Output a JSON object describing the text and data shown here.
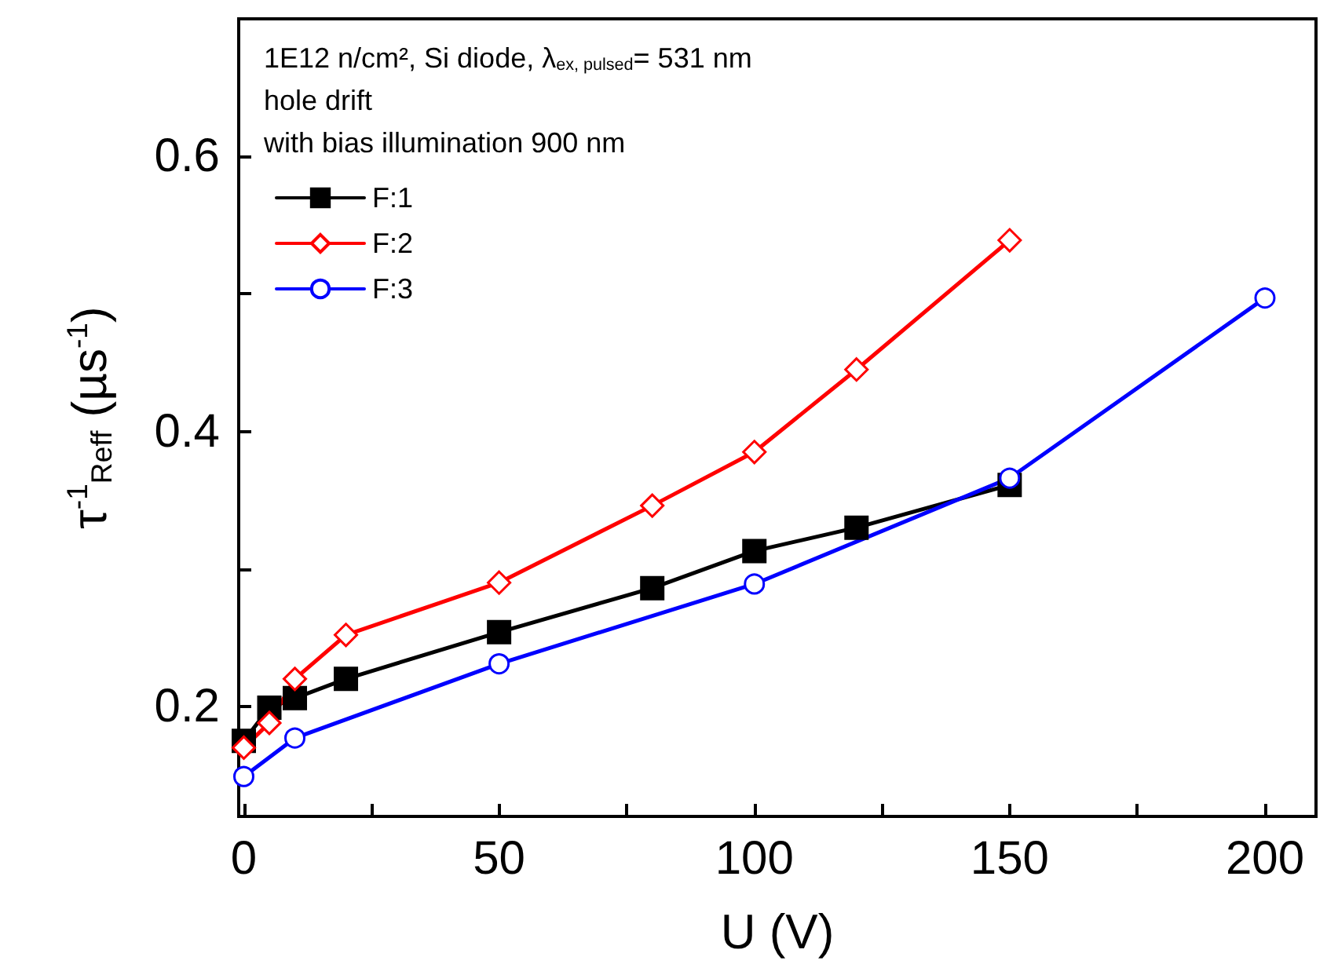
{
  "chart_data": {
    "type": "line",
    "xlabel": "U (V)",
    "ylabel": "τ$^{-1}$$_{Reff}$ (µs$^{-1}$)",
    "annotations": [
      "1E12 n/cm², Si diode, λ$_{ex, pulsed}$= 531 nm",
      "hole drift",
      "with bias illumination 900 nm"
    ],
    "series": [
      {
        "name": "F:1",
        "color": "#000000",
        "marker": "square",
        "x": [
          0,
          5,
          10,
          20,
          50,
          80,
          100,
          120,
          150
        ],
        "values": [
          0.175,
          0.199,
          0.206,
          0.22,
          0.254,
          0.286,
          0.313,
          0.33,
          0.361
        ]
      },
      {
        "name": "F:2",
        "color": "#ff0000",
        "marker": "diamond",
        "x": [
          0,
          5,
          10,
          20,
          50,
          80,
          100,
          120,
          150
        ],
        "values": [
          0.17,
          0.188,
          0.22,
          0.252,
          0.29,
          0.346,
          0.385,
          0.445,
          0.539
        ]
      },
      {
        "name": "F:3",
        "color": "#0000ff",
        "marker": "circle",
        "x": [
          0,
          10,
          50,
          100,
          150,
          200
        ],
        "values": [
          0.149,
          0.177,
          0.231,
          0.289,
          0.366,
          0.497
        ]
      }
    ],
    "xlim": [
      -1,
      210
    ],
    "xticks": [
      0,
      {
        "value": 25,
        "label": null
      },
      50,
      {
        "value": 75,
        "label": null
      },
      100,
      {
        "value": 125,
        "label": null
      },
      150,
      {
        "value": 175,
        "label": null
      },
      200
    ],
    "ylim": [
      0.12,
      0.7
    ],
    "yticks": [
      0.2,
      {
        "value": 0.3,
        "label": null
      },
      0.4,
      {
        "value": 0.5,
        "label": null
      },
      0.6
    ],
    "grid": false,
    "legend": "top left",
    "line_style": "solid"
  }
}
